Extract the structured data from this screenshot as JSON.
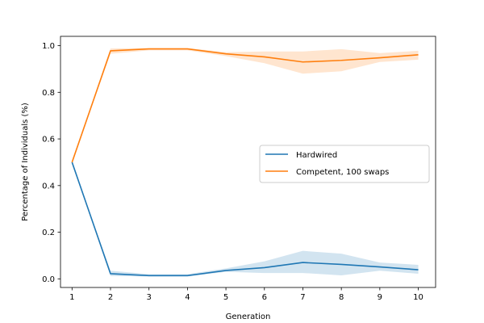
{
  "chart_data": {
    "type": "line",
    "title": "",
    "xlabel": "Generation",
    "ylabel": "Percentage of Individuals (%)",
    "x": [
      1,
      2,
      3,
      4,
      5,
      6,
      7,
      8,
      9,
      10
    ],
    "xlim": [
      0.7,
      10.45
    ],
    "ylim": [
      -0.037,
      1.04
    ],
    "xticks": [
      "1",
      "2",
      "3",
      "4",
      "5",
      "6",
      "7",
      "8",
      "9",
      "10"
    ],
    "yticks": [
      {
        "value": 0.0,
        "label": "0.0"
      },
      {
        "value": 0.2,
        "label": "0.2"
      },
      {
        "value": 0.4,
        "label": "0.4"
      },
      {
        "value": 0.6,
        "label": "0.6"
      },
      {
        "value": 0.8,
        "label": "0.8"
      },
      {
        "value": 1.0,
        "label": "1.0"
      }
    ],
    "grid": false,
    "legend_position": "center-right",
    "series": [
      {
        "name": "Hardwired",
        "color": "#1f77b4",
        "values": [
          0.5,
          0.022,
          0.014,
          0.014,
          0.036,
          0.048,
          0.07,
          0.062,
          0.051,
          0.039
        ],
        "lower": [
          0.5,
          0.012,
          0.01,
          0.01,
          0.03,
          0.025,
          0.025,
          0.015,
          0.035,
          0.022
        ],
        "upper": [
          0.5,
          0.035,
          0.02,
          0.02,
          0.045,
          0.075,
          0.12,
          0.108,
          0.07,
          0.06
        ]
      },
      {
        "name": "Competent, 100 swaps",
        "color": "#ff7f0e",
        "values": [
          0.5,
          0.978,
          0.986,
          0.986,
          0.965,
          0.952,
          0.93,
          0.937,
          0.948,
          0.961
        ],
        "lower": [
          0.5,
          0.965,
          0.98,
          0.98,
          0.955,
          0.925,
          0.88,
          0.89,
          0.93,
          0.94
        ],
        "upper": [
          0.5,
          0.988,
          0.99,
          0.99,
          0.972,
          0.975,
          0.975,
          0.985,
          0.968,
          0.978
        ]
      }
    ]
  }
}
